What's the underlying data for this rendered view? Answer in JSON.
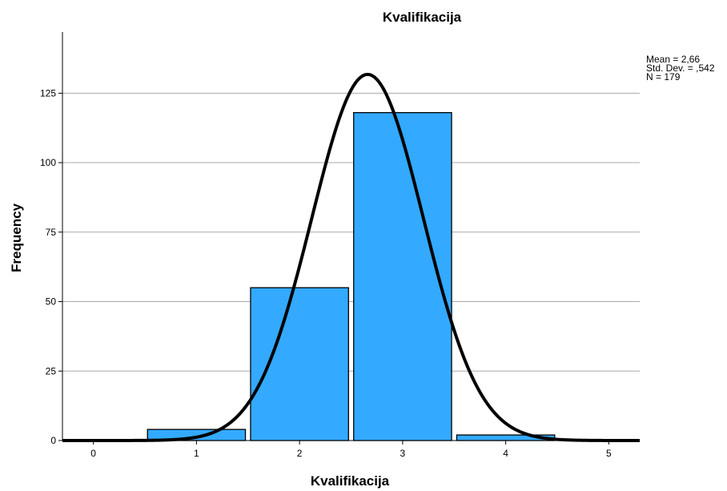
{
  "chart_data": {
    "type": "bar",
    "title": "Kvalifikacija",
    "xlabel": "Kvalifikacija",
    "ylabel": "Frequency",
    "x_ticks": [
      0,
      1,
      2,
      3,
      4,
      5
    ],
    "y_ticks": [
      0,
      25,
      50,
      75,
      100,
      125
    ],
    "xlim": [
      -0.3,
      5.3
    ],
    "ylim": [
      0,
      147
    ],
    "grid": "horizontal",
    "categories": [
      1,
      2,
      3,
      4
    ],
    "values": [
      4,
      55,
      118,
      2
    ],
    "bar_color": "#33aaff",
    "bar_edge_color": "#000000",
    "grid_color": "#aaaaaa",
    "curve": {
      "type": "normal",
      "mean": 2.66,
      "std": 0.542,
      "n": 179,
      "bin_width": 1,
      "color": "#000000"
    },
    "stats": [
      "Mean = 2,66",
      "Std. Dev. = ,542",
      "N = 179"
    ]
  }
}
